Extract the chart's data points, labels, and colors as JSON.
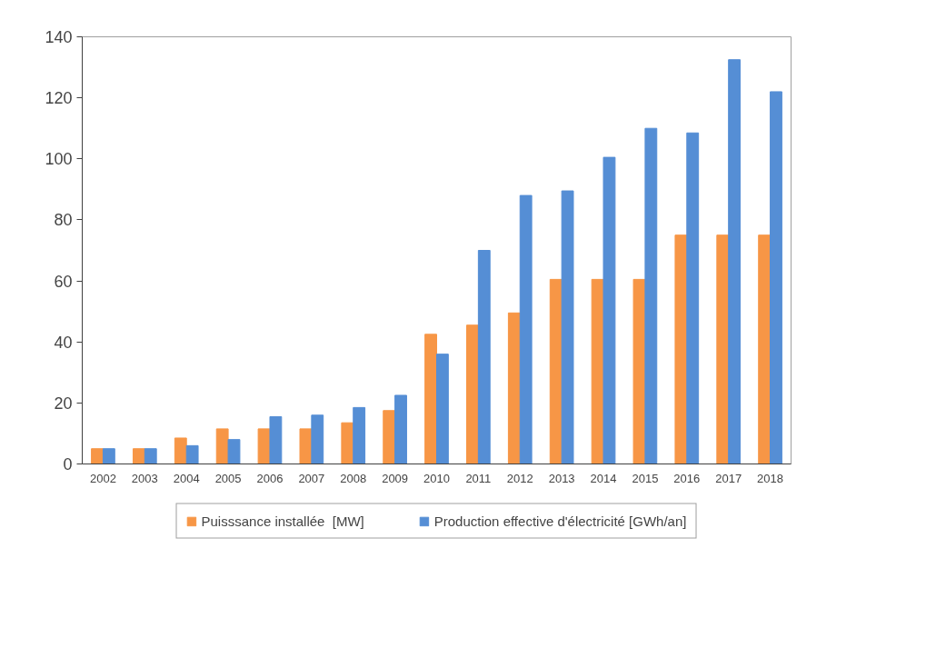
{
  "chart_data": {
    "type": "bar",
    "categories": [
      "2002",
      "2003",
      "2004",
      "2005",
      "2006",
      "2007",
      "2008",
      "2009",
      "2010",
      "2011",
      "2012",
      "2013",
      "2014",
      "2015",
      "2016",
      "2017",
      "2018"
    ],
    "series": [
      {
        "name": "Puisssance installée  [MW]",
        "color": "#f79646",
        "values": [
          5,
          5,
          8.5,
          11.5,
          11.5,
          11.5,
          13.5,
          17.5,
          42.5,
          45.5,
          49.5,
          60.5,
          60.5,
          60.5,
          75,
          75,
          75
        ]
      },
      {
        "name": "Production effective d'électricité [GWh/an]",
        "color": "#558ed5",
        "values": [
          5,
          5,
          6,
          8,
          15.5,
          16,
          18.5,
          22.5,
          36,
          70,
          88,
          89.5,
          100.5,
          110,
          108.5,
          132.5,
          122
        ]
      }
    ],
    "ylim": [
      0,
      140
    ],
    "yticks": [
      0,
      20,
      40,
      60,
      80,
      100,
      120,
      140
    ],
    "grid": false,
    "legend": "bottom"
  }
}
